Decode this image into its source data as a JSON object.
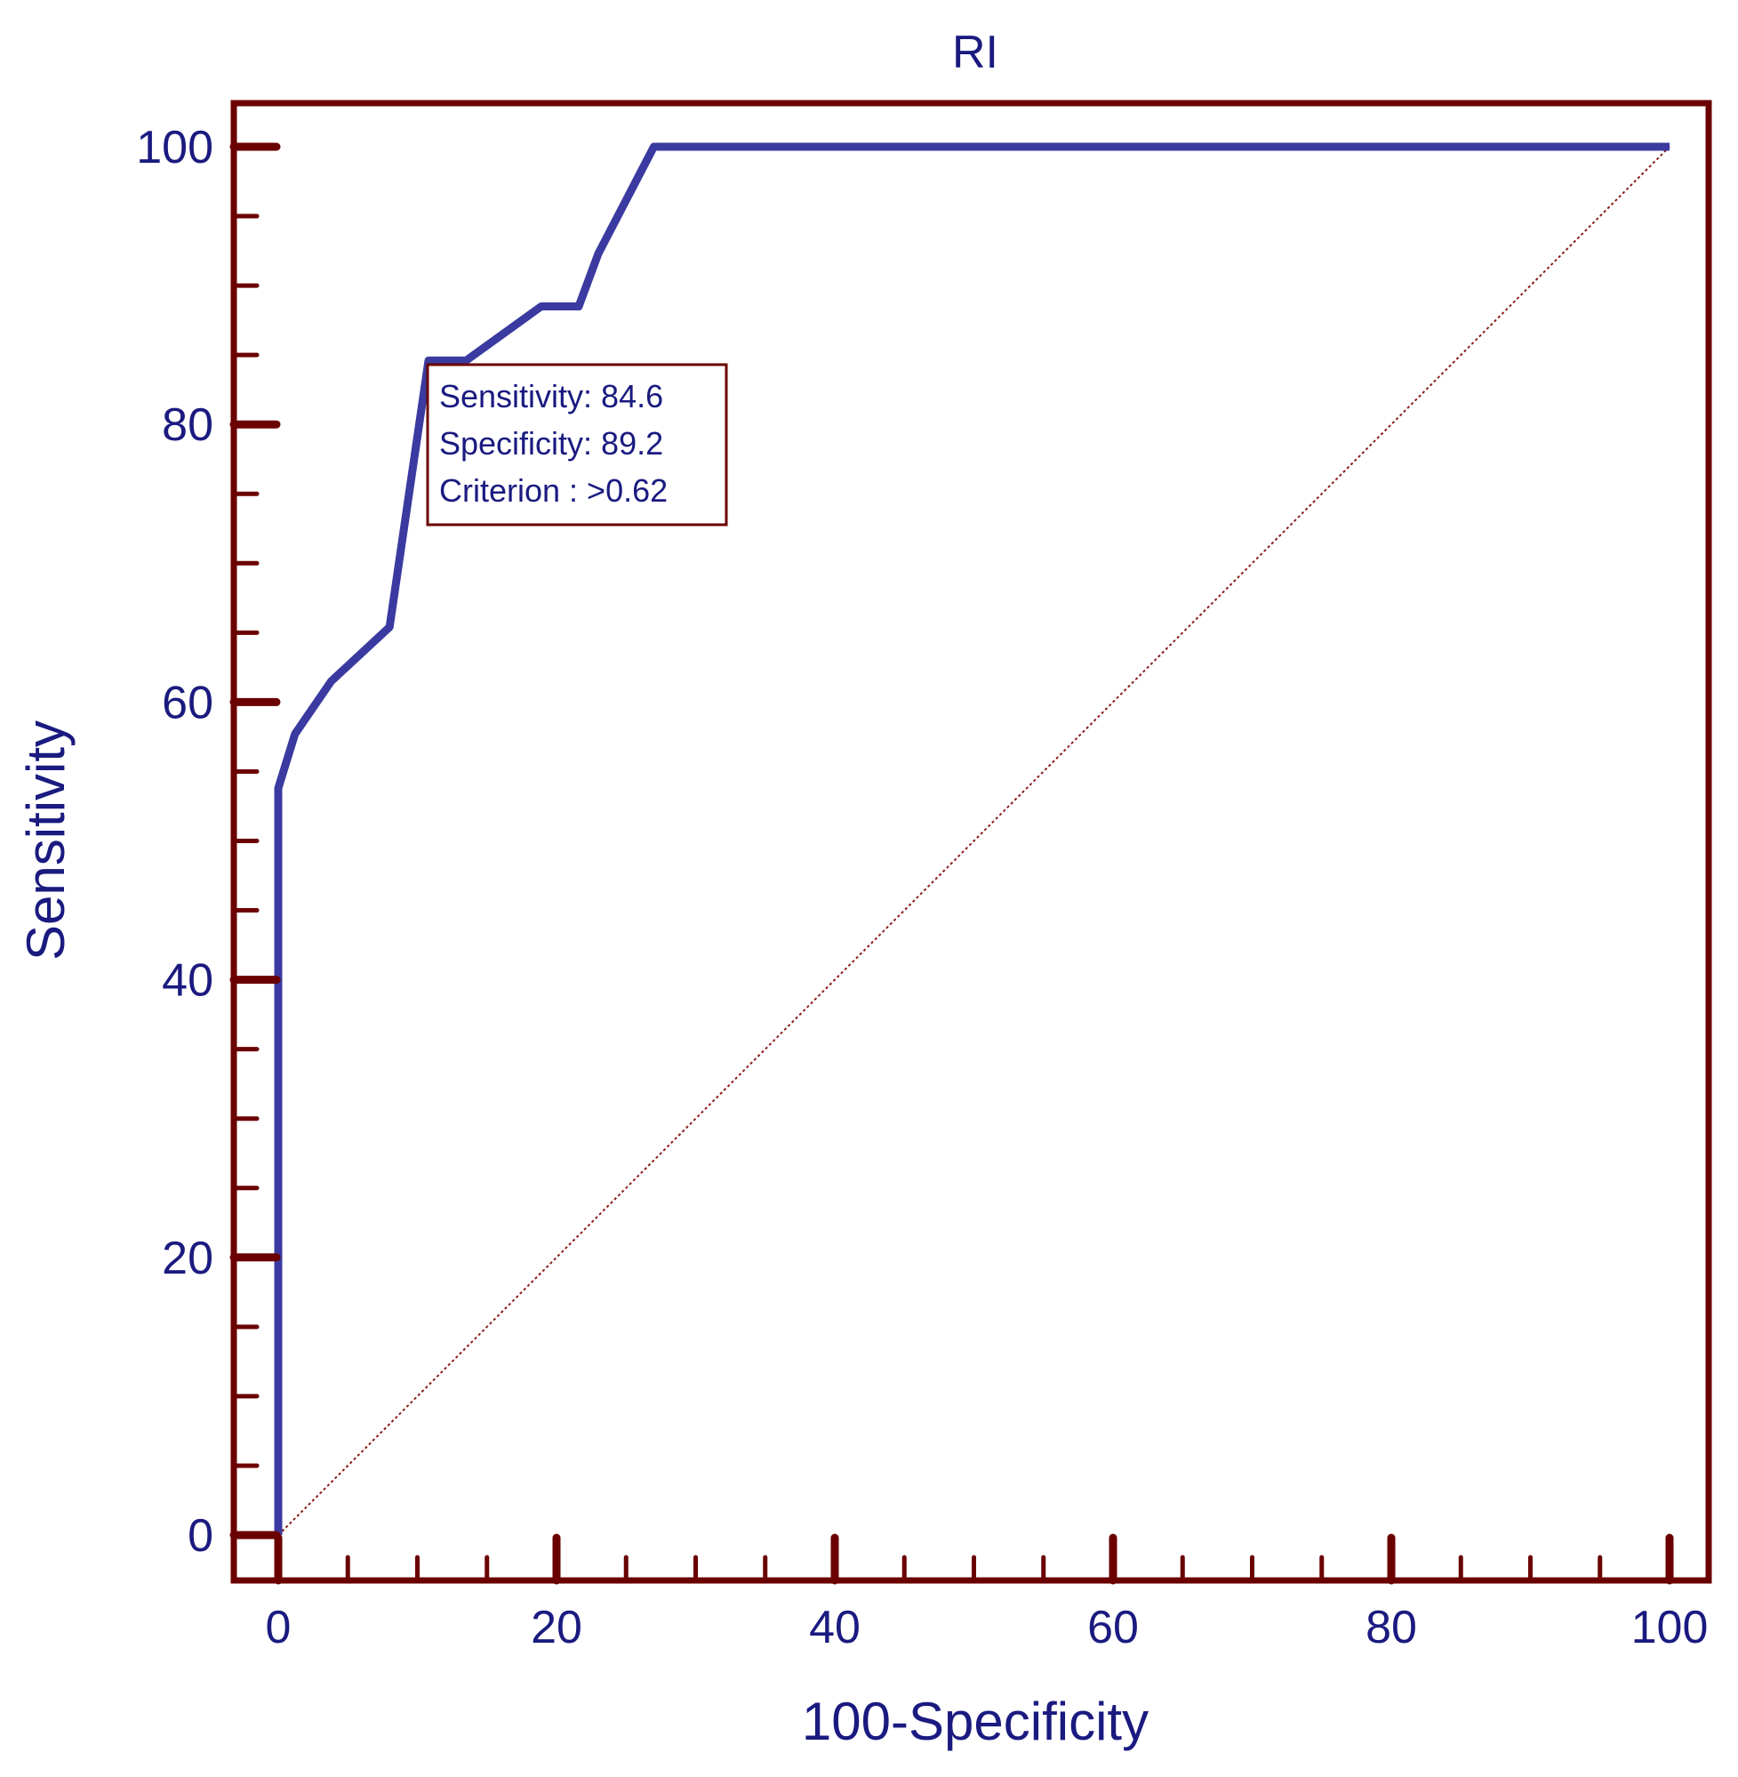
{
  "chart_data": {
    "type": "line",
    "title": "RI",
    "xlabel": "100-Specificity",
    "ylabel": "Sensitivity",
    "xlim": [
      0,
      100
    ],
    "ylim": [
      0,
      100
    ],
    "x_ticks": [
      "0",
      "20",
      "40",
      "60",
      "80",
      "100"
    ],
    "y_ticks": [
      "0",
      "20",
      "40",
      "60",
      "80",
      "100"
    ],
    "grid": false,
    "series": [
      {
        "x": [
          0,
          0,
          1.2,
          3.8,
          8,
          10.8,
          13.5,
          18.9,
          21.6,
          23,
          27,
          100
        ],
        "y": [
          0,
          53.8,
          57.7,
          61.5,
          65.4,
          84.6,
          84.6,
          88.5,
          88.5,
          92.3,
          100,
          100
        ]
      }
    ],
    "reference_line": {
      "x": [
        0,
        100
      ],
      "y": [
        0,
        100
      ]
    },
    "annotation": {
      "sensitivity": "Sensitivity: 84.6",
      "specificity": "Specificity: 89.2",
      "criterion": "Criterion : >0.62"
    },
    "colors": {
      "frame": "#6b0000",
      "text": "#1a1a80",
      "curve": "#3a3aa0",
      "reference": "#8b1a1a"
    }
  }
}
